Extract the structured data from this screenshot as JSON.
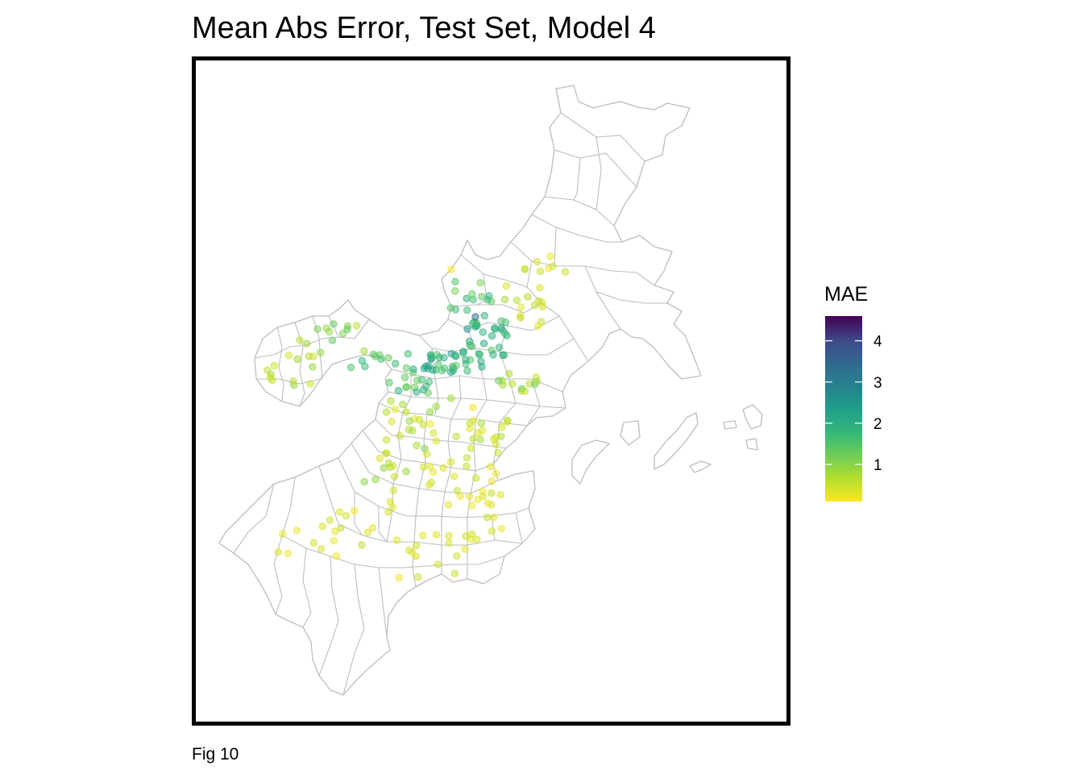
{
  "title": "Mean Abs Error, Test Set, Model 4",
  "caption": "Fig 10",
  "legend": {
    "title": "MAE",
    "min": 0.1,
    "max": 4.6,
    "ticks": [
      {
        "value": 1,
        "label": "1"
      },
      {
        "value": 2,
        "label": "2"
      },
      {
        "value": 3,
        "label": "3"
      },
      {
        "value": 4,
        "label": "4"
      }
    ],
    "palette": "viridis",
    "colors": [
      "#fde725",
      "#5ec962",
      "#21918c",
      "#3b528b",
      "#440154"
    ]
  },
  "map": {
    "region_stroke": "#bdbdbd",
    "panel_border": "#000000"
  },
  "chart_data": {
    "type": "scatter",
    "title": "Mean Abs Error, Test Set, Model 4",
    "xlabel": "",
    "ylabel": "",
    "color_variable": "MAE",
    "color_range": [
      0.1,
      4.6
    ],
    "point_count": 290
  }
}
